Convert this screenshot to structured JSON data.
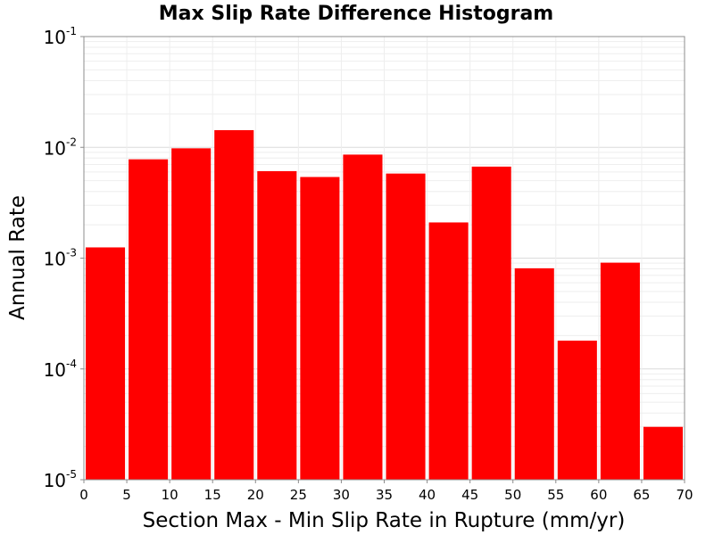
{
  "chart_data": {
    "type": "bar",
    "title": "Max Slip Rate Difference Histogram",
    "xlabel": "Section Max - Min Slip Rate in Rupture (mm/yr)",
    "ylabel": "Annual Rate",
    "xlim": [
      0,
      70
    ],
    "ylim": [
      1e-05,
      0.1
    ],
    "yscale": "log",
    "grid": true,
    "bar_color": "#ff0000",
    "bin_width": 5,
    "x": [
      2.5,
      7.5,
      12.5,
      17.5,
      22.5,
      27.5,
      32.5,
      37.5,
      42.5,
      47.5,
      52.5,
      57.5,
      62.5,
      67.5
    ],
    "values": [
      0.00125,
      0.0078,
      0.0098,
      0.0143,
      0.0061,
      0.0054,
      0.0086,
      0.0058,
      0.0021,
      0.0067,
      0.00081,
      0.00018,
      0.00091,
      3e-05
    ],
    "xticks": [
      "0",
      "5",
      "10",
      "15",
      "20",
      "25",
      "30",
      "35",
      "40",
      "45",
      "50",
      "55",
      "60",
      "65",
      "70"
    ],
    "yticks": [
      {
        "base": "10",
        "exp": "-1"
      },
      {
        "base": "10",
        "exp": "-2"
      },
      {
        "base": "10",
        "exp": "-3"
      },
      {
        "base": "10",
        "exp": "-4"
      },
      {
        "base": "10",
        "exp": "-5"
      }
    ]
  }
}
